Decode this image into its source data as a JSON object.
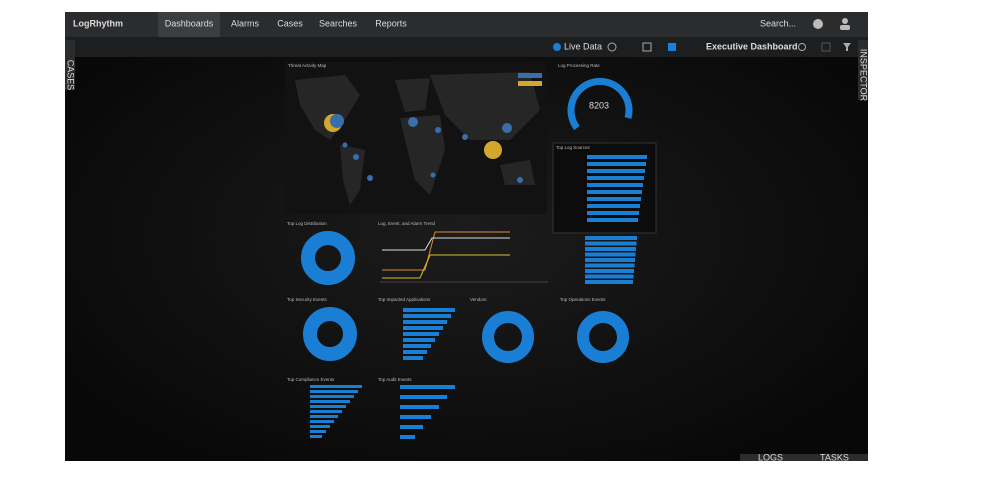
{
  "nav": {
    "logo": "LogRhythm",
    "tabs": [
      "Dashboards",
      "Alarms",
      "Cases",
      "Searches",
      "Reports"
    ],
    "search": "Search..."
  },
  "toolbar": {
    "live": "Live Data",
    "dashboard": "Executive Dashboard"
  },
  "side": {
    "left": "CASES",
    "right": "INSPECTOR"
  },
  "footer": {
    "logs": "LOGS",
    "tasks": "TASKS"
  },
  "widgets": {
    "map": "Threat Activity Map",
    "rate": "Log Processing Rate",
    "rate_value": 8203,
    "sources": "Top Log Sources",
    "distribution": "Top Log Distribution",
    "trend": "Log, Event, and Alarm Trend",
    "security": "Top Security Events",
    "applications": "Top Impacted Applications",
    "vendors": "Vendors",
    "operations": "Top Operations Events",
    "compliance": "Top Compliance Events",
    "audit": "Top Audit Events"
  }
}
